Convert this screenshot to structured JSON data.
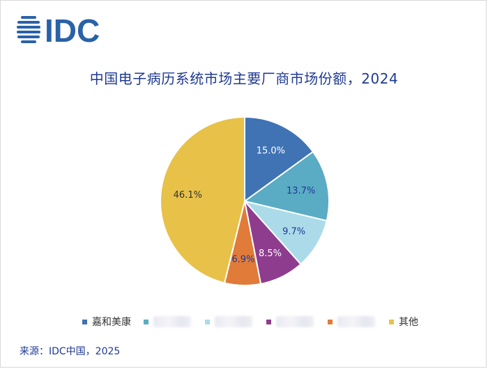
{
  "brand": {
    "logo_text": "IDC",
    "color": "#2a62a8"
  },
  "chart_data": {
    "type": "pie",
    "title": "中国电子病历系统市场主要厂商市场份额，2024",
    "slices": [
      {
        "name": "嘉和美康",
        "value": 15.0,
        "label": "15.0%",
        "color": "#3f73b4",
        "label_color": "#ffffff"
      },
      {
        "name": "",
        "value": 13.7,
        "label": "13.7%",
        "color": "#5aabc4",
        "label_color": "#1f3a93"
      },
      {
        "name": "",
        "value": 9.7,
        "label": "9.7%",
        "color": "#abdbe8",
        "label_color": "#1f3a93"
      },
      {
        "name": "",
        "value": 8.5,
        "label": "8.5%",
        "color": "#8e3d8e",
        "label_color": "#ffffff"
      },
      {
        "name": "",
        "value": 6.9,
        "label": "6.9%",
        "color": "#e07b39",
        "label_color": "#1f3a93"
      },
      {
        "name": "其他",
        "value": 46.1,
        "label": "46.1%",
        "color": "#e8c149",
        "label_color": "#333333"
      }
    ],
    "legend_position": "bottom"
  },
  "legend": {
    "items": [
      {
        "label": "嘉和美康",
        "color": "#3f73b4"
      },
      {
        "label": "",
        "color": "#5aabc4"
      },
      {
        "label": "",
        "color": "#abdbe8"
      },
      {
        "label": "",
        "color": "#8e3d8e"
      },
      {
        "label": "",
        "color": "#e07b39"
      },
      {
        "label": "其他",
        "color": "#e8c149"
      }
    ]
  },
  "source": "来源：IDC中国，2025"
}
